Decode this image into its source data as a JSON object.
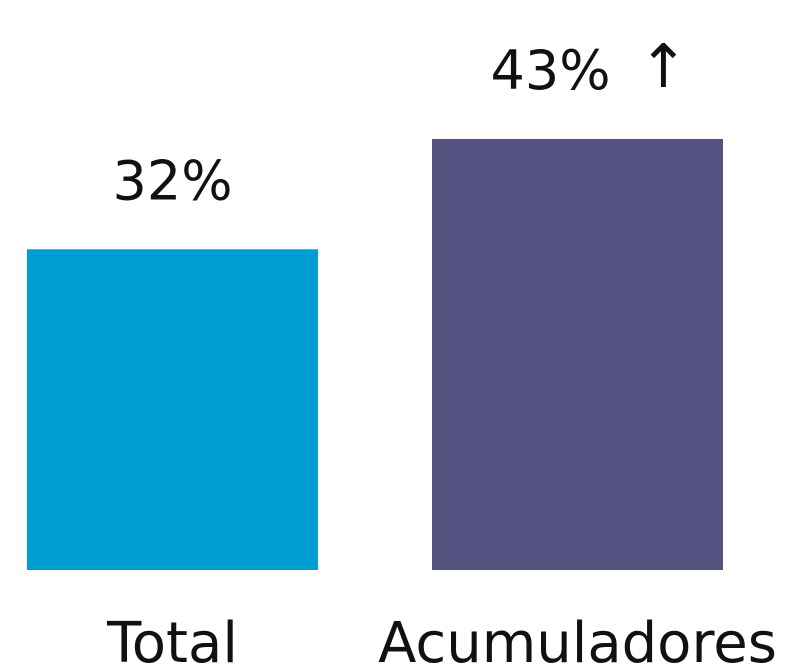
{
  "chart_data": {
    "type": "bar",
    "categories": [
      "Total",
      "Acumuladores"
    ],
    "values": [
      32,
      43
    ],
    "data_labels": [
      "32%",
      "43%"
    ],
    "annotations": [
      {
        "category": "Acumuladores",
        "symbol": "↑",
        "icon": "up-arrow-icon"
      }
    ],
    "colors": [
      "#009dd2",
      "#535280"
    ],
    "title": "",
    "xlabel": "",
    "ylabel": "",
    "ylim": [
      0,
      43
    ],
    "grid": false,
    "legend": "none"
  }
}
